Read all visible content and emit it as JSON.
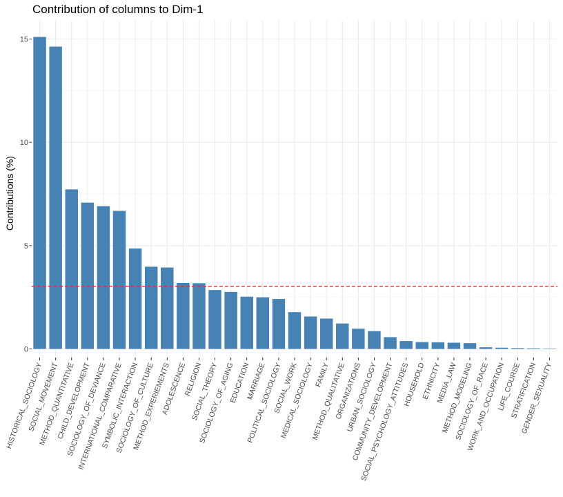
{
  "chart_data": {
    "type": "bar",
    "title": "Contribution of columns to Dim-1",
    "xlabel": "",
    "ylabel": "Contributions (%)",
    "ylim": [
      0,
      15.8
    ],
    "yticks": [
      0,
      5,
      10,
      15
    ],
    "grid": true,
    "bar_color": "#4682B4",
    "reference_line": {
      "value": 3.03,
      "color": "#E8302B",
      "style": "dashed"
    },
    "categories": [
      "HISTORICAL_SOCIOLOGY",
      "SOCIAL_MOVEMENT",
      "METHOD_QUANTITATIVE",
      "CHILD_DEVELOPMENT",
      "SOCIOLOGY_OF_DEVIANCE",
      "INTERNATIONAL_COMPARATIVE",
      "SYMBOLIC_INTERACTION",
      "SOCIOLOGY_OF_CULTURE",
      "METHOD_EXPERIEMENTS",
      "ADOLESCENCE",
      "RELIGION",
      "SOCIAL_THEORY",
      "SOCIOLOGY_OF_AGING",
      "EDUCATION",
      "MARRIAGE",
      "POLITICAL_SOCIOLOGY",
      "SOCIAL_WORK",
      "MEDICAL_SOCIOLOGY",
      "FAMILY",
      "METHOD_QUALITATIVE",
      "ORGANIZATIONS",
      "URBAN_SOCIOLOGY",
      "COMMUNITY_DEVELOPMENT",
      "SOCIAL_PSYCHOLOGY_ATTITUDES",
      "HOUSEHOLD",
      "ETHNICITY",
      "MEDIA_LAW",
      "METHOD_MODELING",
      "SOCIOLOGY_OF_RACE",
      "WORK_AND_OCCUPATION",
      "LIFE_COURSE",
      "STRATIFICATION",
      "GENDER_SEXUALITY"
    ],
    "values": [
      15.1,
      14.63,
      7.72,
      7.08,
      6.91,
      6.68,
      4.86,
      3.98,
      3.94,
      3.19,
      3.18,
      2.85,
      2.76,
      2.53,
      2.5,
      2.42,
      1.78,
      1.57,
      1.47,
      1.23,
      0.98,
      0.86,
      0.57,
      0.38,
      0.33,
      0.32,
      0.3,
      0.28,
      0.08,
      0.06,
      0.04,
      0.03,
      0.02
    ]
  }
}
